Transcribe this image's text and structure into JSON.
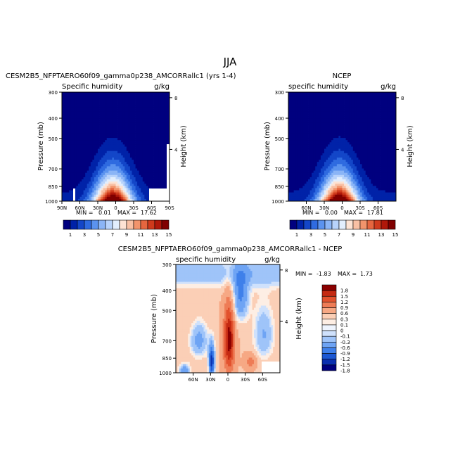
{
  "page": {
    "title": "JJA"
  },
  "panels": [
    {
      "id": "model",
      "case_name": "CESM2B5_NFPTAERO60f09_gamma0p238_AMCORRallc1 (yrs 1-4)",
      "field": "Specific humidity",
      "units": "g/kg",
      "ylabel": "Pressure (mb)",
      "y2label": "Height (km)",
      "min_label": "MIN =",
      "min_value": "0.01",
      "max_label": "MAX =",
      "max_value": "17.62"
    },
    {
      "id": "obs",
      "case_name": "NCEP",
      "field": "specific humidity",
      "units": "g/kg",
      "ylabel": "Pressure (mb)",
      "y2label": "Height (km)",
      "min_label": "MIN =",
      "min_value": "0.00",
      "max_label": "MAX =",
      "max_value": "17.81"
    },
    {
      "id": "diff",
      "case_name": "CESM2B5_NFPTAERO60f09_gamma0p238_AMCORRallc1 - NCEP",
      "field": "specific humidity",
      "units": "g/kg",
      "ylabel": "Pressure (mb)",
      "y2label": "Height (km)",
      "min_label": "MIN =",
      "min_value": "-1.83",
      "max_label": "MAX =",
      "max_value": "1.73"
    }
  ],
  "chart_data": [
    {
      "type": "heatmap",
      "title": "Specific humidity",
      "xlabel": "",
      "ylabel": "Pressure (mb)",
      "y2label": "Height (km)",
      "x_ticks": [
        "90N",
        "60N",
        "30N",
        "0",
        "30S",
        "60S",
        "90S"
      ],
      "x_tick_values": [
        90,
        60,
        30,
        0,
        -30,
        -60,
        -90
      ],
      "xlim": [
        90,
        -90
      ],
      "y_ticks": [
        "300",
        "400",
        "500",
        "700",
        "850",
        "1000"
      ],
      "y_tick_values": [
        300,
        400,
        500,
        700,
        850,
        1000
      ],
      "ylim": [
        1000,
        300
      ],
      "y2_ticks": [
        "8",
        "4"
      ],
      "y2_tick_values": [
        8,
        4
      ],
      "surface_peak_value": 17.62,
      "surface_peak_lat": 5,
      "min": 0.01,
      "max": 17.62,
      "colorbar_labels": [
        "1",
        "3",
        "5",
        "7",
        "9",
        "11",
        "13",
        "15"
      ],
      "colorbar_levels": [
        1,
        2,
        3,
        4,
        5,
        6,
        7,
        8,
        9,
        10,
        11,
        12,
        13,
        14,
        15
      ]
    },
    {
      "type": "heatmap",
      "title": "specific humidity",
      "xlabel": "",
      "ylabel": "Pressure (mb)",
      "y2label": "Height (km)",
      "x_ticks": [
        "60N",
        "30N",
        "0",
        "30S",
        "60S"
      ],
      "x_tick_values": [
        60,
        30,
        0,
        -30,
        -60
      ],
      "xlim": [
        90,
        -90
      ],
      "y_ticks": [
        "300",
        "400",
        "500",
        "700",
        "850",
        "1000"
      ],
      "y_tick_values": [
        300,
        400,
        500,
        700,
        850,
        1000
      ],
      "ylim": [
        1000,
        300
      ],
      "y2_ticks": [
        "8",
        "4"
      ],
      "y2_tick_values": [
        8,
        4
      ],
      "surface_peak_value": 17.81,
      "surface_peak_lat": 5,
      "min": 0.0,
      "max": 17.81,
      "colorbar_labels": [
        "1",
        "3",
        "5",
        "7",
        "9",
        "11",
        "13",
        "15"
      ],
      "colorbar_levels": [
        1,
        2,
        3,
        4,
        5,
        6,
        7,
        8,
        9,
        10,
        11,
        12,
        13,
        14,
        15
      ]
    },
    {
      "type": "heatmap",
      "title": "specific humidity",
      "xlabel": "",
      "ylabel": "Pressure (mb)",
      "y2label": "Height (km)",
      "x_ticks": [
        "60N",
        "30N",
        "0",
        "30S",
        "60S"
      ],
      "x_tick_values": [
        60,
        30,
        0,
        -30,
        -60
      ],
      "xlim": [
        90,
        -90
      ],
      "y_ticks": [
        "300",
        "400",
        "500",
        "700",
        "850",
        "1000"
      ],
      "y_tick_values": [
        300,
        400,
        500,
        700,
        850,
        1000
      ],
      "ylim": [
        1000,
        300
      ],
      "y2_ticks": [
        "8",
        "4"
      ],
      "y2_tick_values": [
        8,
        4
      ],
      "min": -1.83,
      "max": 1.73,
      "colorbar_labels": [
        "1.8",
        "1.5",
        "1.2",
        "0.9",
        "0.6",
        "0.3",
        "0.1",
        "0",
        "-0.1",
        "-0.3",
        "-0.6",
        "-0.9",
        "-1.2",
        "-1.5",
        "-1.8"
      ],
      "colorbar_levels": [
        -1.8,
        -1.5,
        -1.2,
        -0.9,
        -0.6,
        -0.3,
        -0.1,
        0,
        0.1,
        0.3,
        0.6,
        0.9,
        1.2,
        1.5,
        1.8
      ]
    }
  ],
  "colors": {
    "abs_scale": [
      "#00007f",
      "#0022a8",
      "#1346c8",
      "#2f6be0",
      "#5b93ef",
      "#8bb5f6",
      "#b8d3fb",
      "#e2eefd",
      "#fde3d4",
      "#f8c0a4",
      "#f2946c",
      "#e6663f",
      "#cf3a1c",
      "#b0180a",
      "#800000"
    ],
    "diff_scale": [
      "#00007f",
      "#0a2fb0",
      "#1c58d3",
      "#3f80ea",
      "#6ea4f4",
      "#9fc4f9",
      "#cfe1fc",
      "#eef4fe",
      "#fdeee4",
      "#fbcfb6",
      "#f6a884",
      "#ee7c56",
      "#e2522e",
      "#c52a12",
      "#8b0000"
    ]
  }
}
